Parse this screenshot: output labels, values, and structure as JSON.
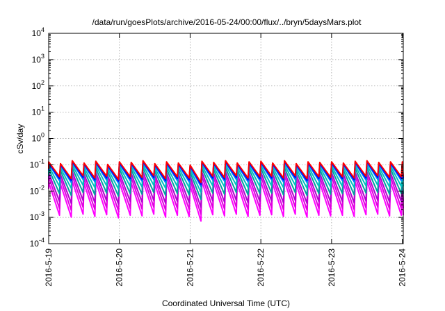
{
  "chart_data": {
    "type": "line",
    "title": "/data/run/goesPlots/archive/2016-05-24/00:00/flux/../bryn/5daysMars.plot",
    "xlabel": "Coordinated Universal Time (UTC)",
    "ylabel": "cSv/day",
    "y_scale": "log",
    "ylim": [
      0.0001,
      10000
    ],
    "xlim": [
      "2016-05-19T00:00",
      "2016-05-24T00:20"
    ],
    "grid": true,
    "legend": "none",
    "y_ticks": [
      {
        "value": 0.0001,
        "base": "10",
        "exp": "-4"
      },
      {
        "value": 0.001,
        "base": "10",
        "exp": "-3"
      },
      {
        "value": 0.01,
        "base": "10",
        "exp": "-2"
      },
      {
        "value": 0.1,
        "base": "10",
        "exp": "-1"
      },
      {
        "value": 1,
        "base": "10",
        "exp": "0"
      },
      {
        "value": 10,
        "base": "10",
        "exp": "1"
      },
      {
        "value": 100,
        "base": "10",
        "exp": "2"
      },
      {
        "value": 1000,
        "base": "10",
        "exp": "3"
      },
      {
        "value": 10000,
        "base": "10",
        "exp": "4"
      }
    ],
    "x_ticks": [
      {
        "value": "2016-05-19T00:00",
        "label": "2016-5-19"
      },
      {
        "value": "2016-05-20T00:00",
        "label": "2016-5-20"
      },
      {
        "value": "2016-05-21T00:00",
        "label": "2016-5-21"
      },
      {
        "value": "2016-05-22T00:00",
        "label": "2016-5-22"
      },
      {
        "value": "2016-05-23T00:00",
        "label": "2016-5-23"
      },
      {
        "value": "2016-05-24T00:00",
        "label": "2016-5-24"
      }
    ],
    "cycle_hours": 4,
    "cycle_peak_dates": [
      "2016-05-19T00:00",
      "2016-05-19T04:00",
      "2016-05-19T08:00",
      "2016-05-19T12:00",
      "2016-05-19T16:00",
      "2016-05-19T20:00",
      "2016-05-20T00:00",
      "2016-05-20T04:00",
      "2016-05-20T08:00",
      "2016-05-20T12:00",
      "2016-05-20T16:00",
      "2016-05-20T20:00",
      "2016-05-21T00:00",
      "2016-05-21T04:00",
      "2016-05-21T08:00",
      "2016-05-21T12:00",
      "2016-05-21T16:00",
      "2016-05-21T20:00",
      "2016-05-22T00:00",
      "2016-05-22T04:00",
      "2016-05-22T08:00",
      "2016-05-22T12:00",
      "2016-05-22T16:00",
      "2016-05-22T20:00",
      "2016-05-23T00:00",
      "2016-05-23T04:00",
      "2016-05-23T08:00",
      "2016-05-23T12:00",
      "2016-05-23T16:00",
      "2016-05-23T20:00",
      "2016-05-24T00:00"
    ],
    "series": [
      {
        "color": "#ff00ff",
        "peak": 0.022,
        "trough": 0.0012
      },
      {
        "color": "#e000e0",
        "peak": 0.035,
        "trough": 0.0022
      },
      {
        "color": "#b400d0",
        "peak": 0.05,
        "trough": 0.004
      },
      {
        "color": "#00a0a0",
        "peak": 0.07,
        "trough": 0.008
      },
      {
        "color": "#00c0c0",
        "peak": 0.09,
        "trough": 0.015
      },
      {
        "color": "#0080ff",
        "peak": 0.11,
        "trough": 0.025
      },
      {
        "color": "#0000ff",
        "peak": 0.12,
        "trough": 0.03
      },
      {
        "color": "#ff0000",
        "peak": 0.13,
        "trough": 0.035
      }
    ]
  }
}
